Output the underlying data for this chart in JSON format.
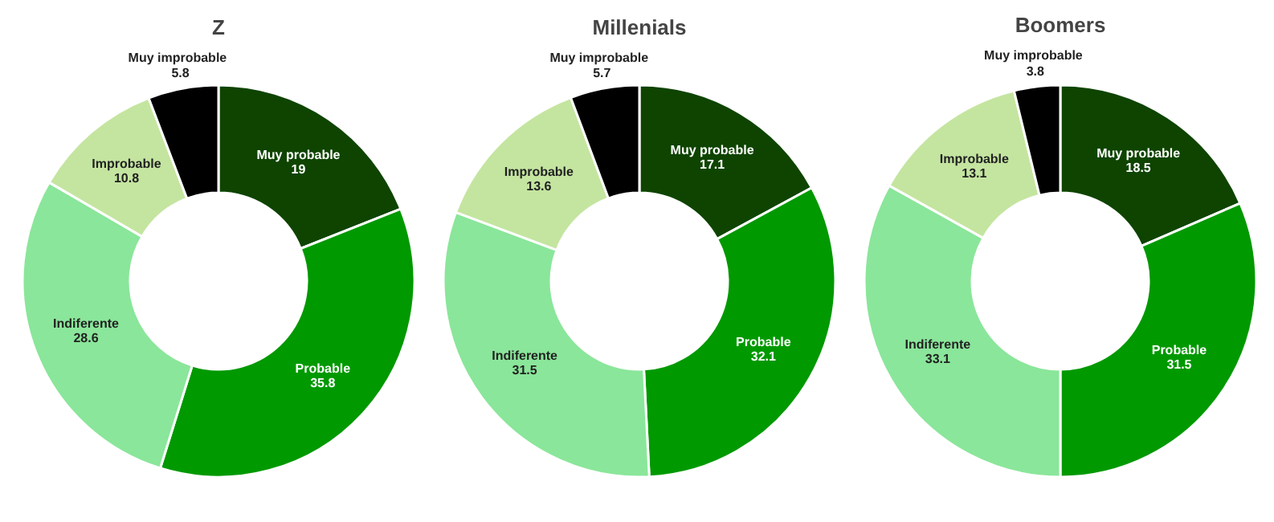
{
  "chart_data": [
    {
      "type": "donut",
      "title": "Z",
      "categories": [
        "Muy probable",
        "Probable",
        "Indiferente",
        "Improbable",
        "Muy improbable"
      ],
      "values": [
        19,
        35.8,
        28.6,
        10.8,
        5.8
      ],
      "colors": [
        "#0e4400",
        "#009900",
        "#8ae69a",
        "#c4e5a0",
        "#000000"
      ],
      "data_labels": true,
      "legend": false
    },
    {
      "type": "donut",
      "title": "Millenials",
      "categories": [
        "Muy probable",
        "Probable",
        "Indiferente",
        "Improbable",
        "Muy improbable"
      ],
      "values": [
        17.1,
        32.1,
        31.5,
        13.6,
        5.7
      ],
      "colors": [
        "#0e4400",
        "#009900",
        "#8ae69a",
        "#c4e5a0",
        "#000000"
      ],
      "data_labels": true,
      "legend": false
    },
    {
      "type": "donut",
      "title": "Boomers",
      "categories": [
        "Muy probable",
        "Probable",
        "Indiferente",
        "Improbable",
        "Muy improbable"
      ],
      "values": [
        18.5,
        31.5,
        33.1,
        13.1,
        3.8
      ],
      "colors": [
        "#0e4400",
        "#009900",
        "#8ae69a",
        "#c4e5a0",
        "#000000"
      ],
      "data_labels": true,
      "legend": false
    }
  ]
}
